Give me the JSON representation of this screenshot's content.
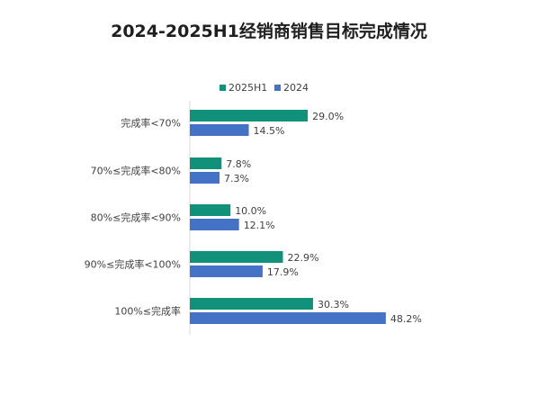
{
  "title": "2024-2025H1经销商销售目标完成情况",
  "chart_data": {
    "type": "bar",
    "orientation": "horizontal",
    "title": "2024-2025H1经销商销售目标完成情况",
    "categories": [
      "完成率<70%",
      "70%≤完成率<80%",
      "80%≤完成率<90%",
      "90%≤完成率<100%",
      "100%≤完成率"
    ],
    "series": [
      {
        "name": "2025H1",
        "color": "#12917a",
        "values": [
          29.0,
          7.8,
          10.0,
          22.9,
          30.3
        ],
        "labels": [
          "29.0%",
          "7.8%",
          "10.0%",
          "22.9%",
          "30.3%"
        ]
      },
      {
        "name": "2024",
        "color": "#4472c4",
        "values": [
          14.5,
          7.3,
          12.1,
          17.9,
          48.2
        ],
        "labels": [
          "14.5%",
          "7.3%",
          "12.1%",
          "17.9%",
          "48.2%"
        ]
      }
    ],
    "legend": "top",
    "grid": false,
    "xlim": [
      0,
      50
    ]
  }
}
